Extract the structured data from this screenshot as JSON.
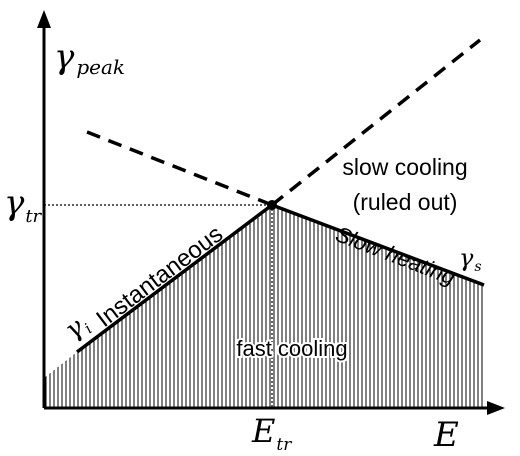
{
  "axes": {
    "y_symbol": "γ",
    "y_subscript": "peak",
    "x_symbol": "E"
  },
  "markers": {
    "gamma_tr_symbol": "γ",
    "gamma_tr_subscript": "tr",
    "e_tr_symbol": "E",
    "e_tr_subscript": "tr",
    "gamma_i_symbol": "γ",
    "gamma_i_subscript": "i",
    "gamma_s_symbol": "γ",
    "gamma_s_subscript": "s"
  },
  "labels": {
    "instantaneous": "Instantaneous",
    "slow_heating": "Slow heating",
    "slow_cooling_line1": "slow cooling",
    "slow_cooling_line2": "(ruled out)",
    "fast_cooling": "fast cooling"
  },
  "colors": {
    "ink": "#000000",
    "background": "#ffffff"
  }
}
